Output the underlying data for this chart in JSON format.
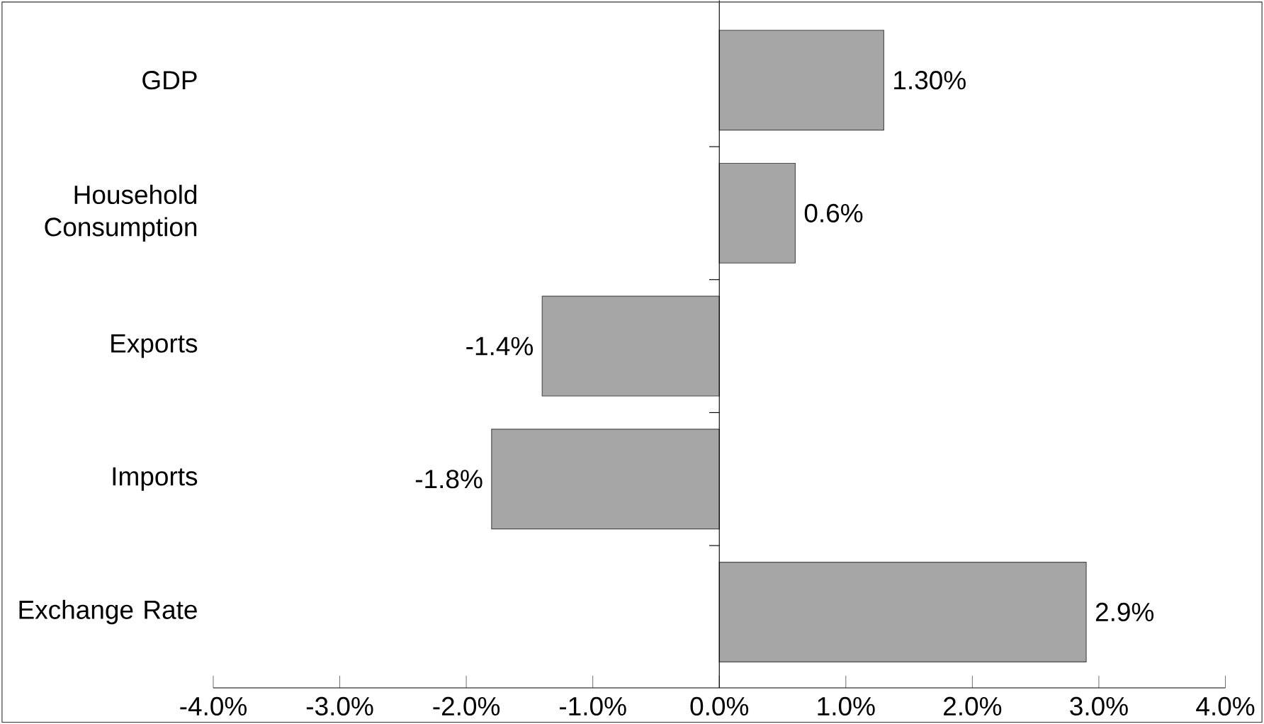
{
  "chart_data": {
    "type": "bar",
    "orientation": "horizontal",
    "categories": [
      "GDP",
      "Household Consumption",
      "Exports",
      "Imports",
      "Exchange Rate"
    ],
    "values": [
      1.3,
      0.6,
      -1.4,
      -1.8,
      2.9
    ],
    "value_labels": [
      "1.30%",
      "0.6%",
      "-1.4%",
      "-1.8%",
      "2.9%"
    ],
    "color": "#a6a6a6",
    "xlim": [
      -4,
      4
    ],
    "xticks": [
      {
        "value": -4,
        "label": "-4.0%"
      },
      {
        "value": -3,
        "label": "-3.0%"
      },
      {
        "value": -2,
        "label": "-2.0%"
      },
      {
        "value": -1,
        "label": "-1.0%"
      },
      {
        "value": 0,
        "label": "0.0%"
      },
      {
        "value": 1,
        "label": "1.0%"
      },
      {
        "value": 2,
        "label": "2.0%"
      },
      {
        "value": 3,
        "label": "3.0%"
      },
      {
        "value": 4,
        "label": "4.0%"
      }
    ]
  }
}
